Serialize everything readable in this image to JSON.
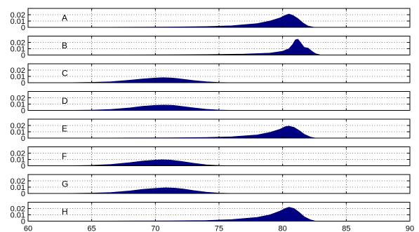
{
  "chart_data": {
    "type": "area",
    "title": "",
    "xlabel": "",
    "ylabel": "",
    "xlim": [
      60,
      90
    ],
    "ylim": [
      0,
      0.03
    ],
    "xticks": [
      "60",
      "65",
      "70",
      "75",
      "80",
      "85",
      "90"
    ],
    "yticks": [
      "0",
      "0.01",
      "0.02"
    ],
    "grid": "dotted",
    "fill_color": "#000080",
    "series": [
      {
        "label": "A",
        "points": [
          [
            64,
            0
          ],
          [
            68,
            0.0002
          ],
          [
            71,
            0.0005
          ],
          [
            74,
            0.0012
          ],
          [
            76,
            0.0025
          ],
          [
            78,
            0.006
          ],
          [
            79,
            0.01
          ],
          [
            79.8,
            0.015
          ],
          [
            80.2,
            0.019
          ],
          [
            80.5,
            0.021
          ],
          [
            80.8,
            0.019
          ],
          [
            81.2,
            0.014
          ],
          [
            81.6,
            0.007
          ],
          [
            82,
            0.002
          ],
          [
            82.5,
            0
          ]
        ]
      },
      {
        "label": "B",
        "points": [
          [
            64,
            0
          ],
          [
            70,
            0.0002
          ],
          [
            74,
            0.0007
          ],
          [
            77,
            0.0015
          ],
          [
            79,
            0.003
          ],
          [
            80,
            0.006
          ],
          [
            80.5,
            0.01
          ],
          [
            80.8,
            0.017
          ],
          [
            81,
            0.024
          ],
          [
            81.2,
            0.025
          ],
          [
            81.4,
            0.02
          ],
          [
            81.7,
            0.012
          ],
          [
            82,
            0.011
          ],
          [
            82.3,
            0.006
          ],
          [
            82.6,
            0.002
          ],
          [
            83,
            0
          ]
        ]
      },
      {
        "label": "C",
        "points": [
          [
            63,
            0
          ],
          [
            65,
            0.0005
          ],
          [
            66.5,
            0.0015
          ],
          [
            68,
            0.004
          ],
          [
            69,
            0.006
          ],
          [
            70,
            0.0075
          ],
          [
            70.6,
            0.008
          ],
          [
            71.3,
            0.0075
          ],
          [
            72,
            0.006
          ],
          [
            73,
            0.0035
          ],
          [
            74,
            0.0015
          ],
          [
            75,
            0.0004
          ],
          [
            76,
            0
          ]
        ]
      },
      {
        "label": "D",
        "points": [
          [
            63,
            0
          ],
          [
            65,
            0.0004
          ],
          [
            66.5,
            0.0015
          ],
          [
            68,
            0.004
          ],
          [
            69,
            0.0065
          ],
          [
            70,
            0.008
          ],
          [
            70.7,
            0.0085
          ],
          [
            71.4,
            0.008
          ],
          [
            72,
            0.0065
          ],
          [
            73,
            0.004
          ],
          [
            74,
            0.0018
          ],
          [
            75,
            0.0005
          ],
          [
            76,
            0
          ]
        ]
      },
      {
        "label": "E",
        "points": [
          [
            64,
            0
          ],
          [
            68,
            0.0002
          ],
          [
            71,
            0.0004
          ],
          [
            74,
            0.001
          ],
          [
            76,
            0.002
          ],
          [
            78,
            0.005
          ],
          [
            79,
            0.009
          ],
          [
            79.8,
            0.014
          ],
          [
            80.2,
            0.018
          ],
          [
            80.5,
            0.019
          ],
          [
            80.9,
            0.017
          ],
          [
            81.3,
            0.012
          ],
          [
            81.7,
            0.006
          ],
          [
            82.2,
            0.0015
          ],
          [
            82.6,
            0
          ]
        ]
      },
      {
        "label": "F",
        "points": [
          [
            63,
            0
          ],
          [
            65,
            0.0006
          ],
          [
            66.5,
            0.002
          ],
          [
            68,
            0.005
          ],
          [
            69,
            0.0075
          ],
          [
            70,
            0.009
          ],
          [
            70.5,
            0.0095
          ],
          [
            71.2,
            0.009
          ],
          [
            72,
            0.007
          ],
          [
            73,
            0.004
          ],
          [
            74,
            0.0015
          ],
          [
            75,
            0.0004
          ],
          [
            76,
            0
          ]
        ]
      },
      {
        "label": "G",
        "points": [
          [
            63,
            0
          ],
          [
            65,
            0.0005
          ],
          [
            66.5,
            0.0015
          ],
          [
            68,
            0.004
          ],
          [
            69,
            0.0065
          ],
          [
            70,
            0.008
          ],
          [
            70.8,
            0.009
          ],
          [
            71.5,
            0.0085
          ],
          [
            72.2,
            0.007
          ],
          [
            73,
            0.0045
          ],
          [
            74,
            0.002
          ],
          [
            75,
            0.0005
          ],
          [
            76,
            0
          ]
        ]
      },
      {
        "label": "H",
        "points": [
          [
            64,
            0
          ],
          [
            68,
            0.0002
          ],
          [
            71,
            0.0004
          ],
          [
            74,
            0.001
          ],
          [
            76,
            0.0025
          ],
          [
            78,
            0.006
          ],
          [
            79,
            0.01
          ],
          [
            79.8,
            0.016
          ],
          [
            80.2,
            0.02
          ],
          [
            80.5,
            0.022
          ],
          [
            80.9,
            0.02
          ],
          [
            81.3,
            0.014
          ],
          [
            81.7,
            0.007
          ],
          [
            82.2,
            0.002
          ],
          [
            82.6,
            0
          ]
        ]
      }
    ]
  }
}
